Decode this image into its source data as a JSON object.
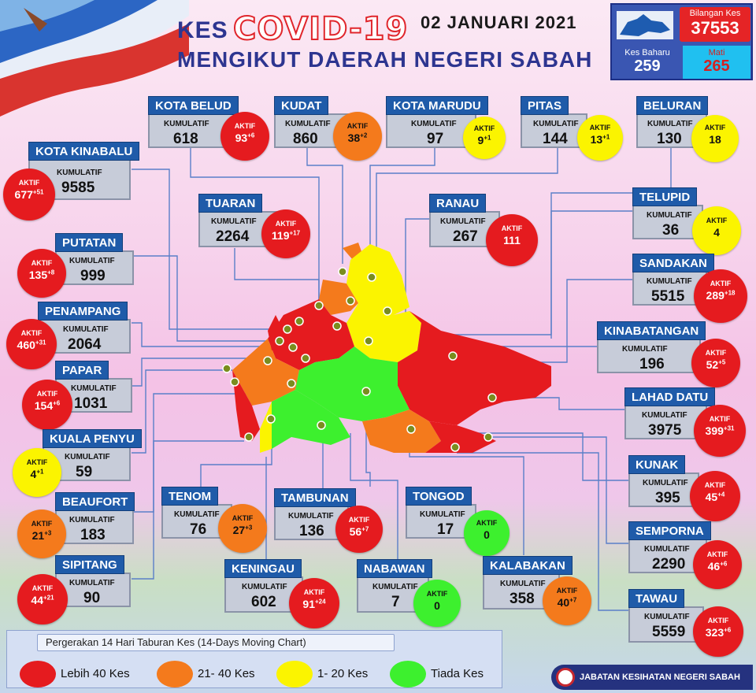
{
  "header": {
    "kes": "KES",
    "covid": "COVID-19",
    "date": "02 JANUARI 2021",
    "subtitle": "MENGIKUT DAERAH NEGERI SABAH"
  },
  "stats": {
    "total_label": "Bilangan Kes",
    "total_value": "37553",
    "new_label": "Kes Baharu",
    "new_value": "259",
    "deaths_label": "Mati",
    "deaths_value": "265"
  },
  "labels": {
    "cumulative": "KUMULATIF",
    "active": "AKTIF"
  },
  "colors": {
    "red": "#e51b1f",
    "orange": "#f47a1c",
    "yellow": "#fbf400",
    "green": "#3df02e"
  },
  "districts": {
    "kota_belud": {
      "name": "KOTA BELUD",
      "cumulative": "618",
      "active": "93",
      "plus": "+6",
      "level": "red"
    },
    "kudat": {
      "name": "KUDAT",
      "cumulative": "860",
      "active": "38",
      "plus": "+2",
      "level": "orange"
    },
    "kota_marudu": {
      "name": "KOTA MARUDU",
      "cumulative": "97",
      "active": "9",
      "plus": "+1",
      "level": "yellow"
    },
    "pitas": {
      "name": "PITAS",
      "cumulative": "144",
      "active": "13",
      "plus": "+1",
      "level": "yellow"
    },
    "beluran": {
      "name": "BELURAN",
      "cumulative": "130",
      "active": "18",
      "plus": "",
      "level": "yellow"
    },
    "kota_kinabalu": {
      "name": "KOTA KINABALU",
      "cumulative": "9585",
      "active": "677",
      "plus": "+51",
      "level": "red"
    },
    "tuaran": {
      "name": "TUARAN",
      "cumulative": "2264",
      "active": "119",
      "plus": "+17",
      "level": "red"
    },
    "ranau": {
      "name": "RANAU",
      "cumulative": "267",
      "active": "111",
      "plus": "",
      "level": "red"
    },
    "telupid": {
      "name": "TELUPID",
      "cumulative": "36",
      "active": "4",
      "plus": "",
      "level": "yellow"
    },
    "putatan": {
      "name": "PUTATAN",
      "cumulative": "999",
      "active": "135",
      "plus": "+8",
      "level": "red"
    },
    "sandakan": {
      "name": "SANDAKAN",
      "cumulative": "5515",
      "active": "289",
      "plus": "+18",
      "level": "red"
    },
    "penampang": {
      "name": "PENAMPANG",
      "cumulative": "2064",
      "active": "460",
      "plus": "+31",
      "level": "red"
    },
    "kinabatangan": {
      "name": "KINABATANGAN",
      "cumulative": "196",
      "active": "52",
      "plus": "+5",
      "level": "red"
    },
    "papar": {
      "name": "PAPAR",
      "cumulative": "1031",
      "active": "154",
      "plus": "+6",
      "level": "red"
    },
    "lahad_datu": {
      "name": "LAHAD DATU",
      "cumulative": "3975",
      "active": "399",
      "plus": "+31",
      "level": "red"
    },
    "kuala_penyu": {
      "name": "KUALA PENYU",
      "cumulative": "59",
      "active": "4",
      "plus": "+1",
      "level": "yellow"
    },
    "kunak": {
      "name": "KUNAK",
      "cumulative": "395",
      "active": "45",
      "plus": "+4",
      "level": "red"
    },
    "beaufort": {
      "name": "BEAUFORT",
      "cumulative": "183",
      "active": "21",
      "plus": "+3",
      "level": "orange"
    },
    "tenom": {
      "name": "TENOM",
      "cumulative": "76",
      "active": "27",
      "plus": "+3",
      "level": "orange"
    },
    "tambunan": {
      "name": "TAMBUNAN",
      "cumulative": "136",
      "active": "56",
      "plus": "+7",
      "level": "red"
    },
    "tongod": {
      "name": "TONGOD",
      "cumulative": "17",
      "active": "0",
      "plus": "",
      "level": "green"
    },
    "semporna": {
      "name": "SEMPORNA",
      "cumulative": "2290",
      "active": "46",
      "plus": "+6",
      "level": "red"
    },
    "sipitang": {
      "name": "SIPITANG",
      "cumulative": "90",
      "active": "44",
      "plus": "+21",
      "level": "red"
    },
    "keningau": {
      "name": "KENINGAU",
      "cumulative": "602",
      "active": "91",
      "plus": "+24",
      "level": "red"
    },
    "nabawan": {
      "name": "NABAWAN",
      "cumulative": "7",
      "active": "0",
      "plus": "",
      "level": "green"
    },
    "kalabakan": {
      "name": "KALABAKAN",
      "cumulative": "358",
      "active": "40",
      "plus": "+7",
      "level": "orange"
    },
    "tawau": {
      "name": "TAWAU",
      "cumulative": "5559",
      "active": "323",
      "plus": "+6",
      "level": "red"
    }
  },
  "legend": {
    "title": "Pergerakan 14 Hari Taburan Kes (14-Days Moving Chart)",
    "items": [
      "Lebih 40 Kes",
      "21- 40 Kes",
      "1- 20 Kes",
      "Tiada Kes"
    ]
  },
  "footer": {
    "agency": "JABATAN KESIHATAN NEGERI SABAH"
  }
}
